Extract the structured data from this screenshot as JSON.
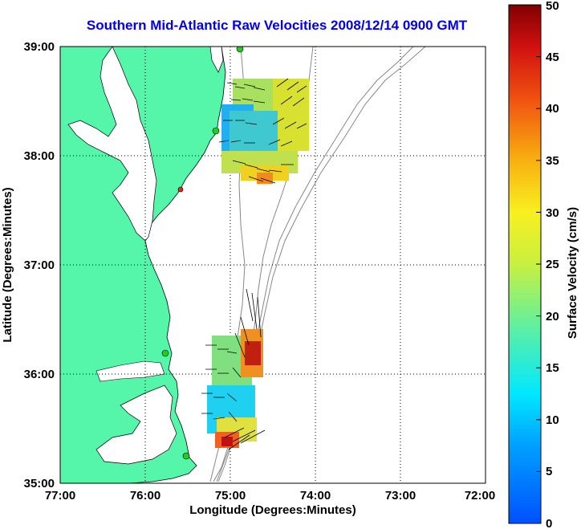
{
  "title": "Southern Mid-Atlantic Raw Velocities 2008/12/14 0900 GMT",
  "xlabel": "Longitude (Degrees:Minutes)",
  "ylabel": "Latitude (Degrees:Minutes)",
  "x_ticks": [
    "77:00",
    "76:00",
    "75:00",
    "74:00",
    "73:00",
    "72:00"
  ],
  "y_ticks": [
    "39:00",
    "38:00",
    "37:00",
    "36:00",
    "35:00"
  ],
  "colorbar": {
    "label": "Surface Velocity (cm/s)",
    "ticks": [
      "0",
      "5",
      "10",
      "15",
      "20",
      "25",
      "30",
      "35",
      "40",
      "45",
      "50"
    ]
  },
  "colors": {
    "land": "#55f5aa",
    "title": "#0000ee",
    "station_green": "#22cc22",
    "station_red": "#ee2222"
  },
  "chart_data": {
    "type": "map",
    "xlim": [
      -77,
      -72
    ],
    "ylim": [
      35,
      39
    ],
    "grid": true,
    "vector_fields": [
      {
        "region": "north",
        "lon_range": [
          -75.1,
          -74.15
        ],
        "lat_range": [
          37.75,
          38.7
        ],
        "speed_cm_s": [
          0,
          30
        ]
      },
      {
        "region": "south",
        "lon_range": [
          -75.2,
          -74.55
        ],
        "lat_range": [
          35.25,
          36.35
        ],
        "speed_cm_s": [
          5,
          50
        ]
      }
    ]
  }
}
